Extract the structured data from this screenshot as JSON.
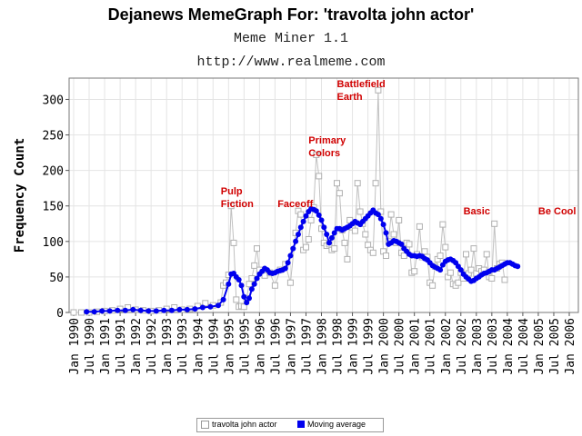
{
  "title": "Dejanews MemeGraph For: 'travolta john actor'",
  "subtitle": "Meme Miner 1.1",
  "url": "http://www.realmeme.com",
  "chart_data": {
    "type": "line",
    "ylabel": "Frequency Count",
    "ylim": [
      0,
      330
    ],
    "yticks": [
      0,
      50,
      100,
      150,
      200,
      250,
      300
    ],
    "x_tick_labels": [
      "Jan 1990",
      "Jul 1990",
      "Jan 1991",
      "Jul 1991",
      "Jan 1992",
      "Jul 1992",
      "Jan 1993",
      "Jul 1993",
      "Jan 1994",
      "Jul 1994",
      "Jan 1995",
      "Jul 1995",
      "Jan 1996",
      "Jul 1996",
      "Jan 1997",
      "Jul 1997",
      "Jan 1998",
      "Jul 1998",
      "Jan 1999",
      "Jul 1999",
      "Jan 2000",
      "Jul 2000",
      "Jan 2001",
      "Jul 2001",
      "Jan 2002",
      "Jul 2002",
      "Jan 2003",
      "Jul 2003",
      "Jan 2004",
      "Jul 2004",
      "Jan 2005",
      "Jul 2005",
      "Jan 2006"
    ],
    "grid": true,
    "legend_position": "bottom-center",
    "colors": {
      "raw": "#c0c0c0",
      "avg": "#0000ee",
      "annotation": "#d00000"
    },
    "annotations": [
      {
        "lines": [
          "Pulp",
          "Fiction"
        ],
        "x": "1994-10"
      },
      {
        "lines": [
          "Faceoff"
        ],
        "x": "1996-08"
      },
      {
        "lines": [
          "Primary",
          "Colors"
        ],
        "x": "1997-08"
      },
      {
        "lines": [
          "Battlefield",
          "Earth"
        ],
        "x": "1998-07"
      },
      {
        "lines": [
          "Basic"
        ],
        "x": "2002-08"
      },
      {
        "lines": [
          "Be Cool"
        ],
        "x": "2005-01"
      }
    ],
    "series": [
      {
        "name": "travolta john actor",
        "points": [
          [
            "1990-01",
            0
          ],
          [
            "1990-04",
            0
          ],
          [
            "1990-07",
            0
          ],
          [
            "1990-10",
            1
          ],
          [
            "1991-01",
            2
          ],
          [
            "1991-04",
            3
          ],
          [
            "1991-07",
            5
          ],
          [
            "1991-10",
            7
          ],
          [
            "1992-01",
            4
          ],
          [
            "1992-04",
            3
          ],
          [
            "1992-07",
            2
          ],
          [
            "1992-10",
            3
          ],
          [
            "1993-01",
            5
          ],
          [
            "1993-04",
            7
          ],
          [
            "1993-07",
            4
          ],
          [
            "1993-10",
            5
          ],
          [
            "1994-01",
            9
          ],
          [
            "1994-04",
            13
          ],
          [
            "1994-07",
            10
          ],
          [
            "1994-10",
            14
          ],
          [
            "1994-11",
            38
          ],
          [
            "1994-12",
            42
          ],
          [
            "1995-01",
            53
          ],
          [
            "1995-02",
            150
          ],
          [
            "1995-03",
            98
          ],
          [
            "1995-04",
            18
          ],
          [
            "1995-05",
            8
          ],
          [
            "1995-06",
            9
          ],
          [
            "1995-07",
            8
          ],
          [
            "1995-08",
            20
          ],
          [
            "1995-09",
            40
          ],
          [
            "1995-10",
            48
          ],
          [
            "1995-11",
            66
          ],
          [
            "1995-12",
            90
          ],
          [
            "1996-01",
            60
          ],
          [
            "1996-03",
            52
          ],
          [
            "1996-05",
            56
          ],
          [
            "1996-07",
            38
          ],
          [
            "1996-09",
            60
          ],
          [
            "1996-11",
            68
          ],
          [
            "1997-01",
            42
          ],
          [
            "1997-03",
            112
          ],
          [
            "1997-04",
            143
          ],
          [
            "1997-05",
            138
          ],
          [
            "1997-06",
            88
          ],
          [
            "1997-07",
            92
          ],
          [
            "1997-08",
            103
          ],
          [
            "1997-09",
            130
          ],
          [
            "1997-10",
            148
          ],
          [
            "1997-11",
            222
          ],
          [
            "1997-12",
            192
          ],
          [
            "1998-01",
            118
          ],
          [
            "1998-02",
            98
          ],
          [
            "1998-03",
            94
          ],
          [
            "1998-04",
            96
          ],
          [
            "1998-05",
            88
          ],
          [
            "1998-06",
            90
          ],
          [
            "1998-07",
            182
          ],
          [
            "1998-08",
            168
          ],
          [
            "1998-09",
            116
          ],
          [
            "1998-10",
            98
          ],
          [
            "1998-11",
            75
          ],
          [
            "1998-12",
            130
          ],
          [
            "1999-01",
            120
          ],
          [
            "1999-02",
            115
          ],
          [
            "1999-03",
            182
          ],
          [
            "1999-04",
            142
          ],
          [
            "1999-05",
            125
          ],
          [
            "1999-06",
            110
          ],
          [
            "1999-07",
            95
          ],
          [
            "1999-08",
            88
          ],
          [
            "1999-09",
            84
          ],
          [
            "1999-10",
            182
          ],
          [
            "1999-11",
            313
          ],
          [
            "1999-12",
            142
          ],
          [
            "2000-01",
            86
          ],
          [
            "2000-02",
            80
          ],
          [
            "2000-03",
            100
          ],
          [
            "2000-04",
            138
          ],
          [
            "2000-05",
            110
          ],
          [
            "2000-06",
            98
          ],
          [
            "2000-07",
            130
          ],
          [
            "2000-08",
            84
          ],
          [
            "2000-09",
            80
          ],
          [
            "2000-10",
            98
          ],
          [
            "2000-11",
            96
          ],
          [
            "2000-12",
            56
          ],
          [
            "2001-01",
            58
          ],
          [
            "2001-02",
            82
          ],
          [
            "2001-03",
            121
          ],
          [
            "2001-04",
            78
          ],
          [
            "2001-05",
            86
          ],
          [
            "2001-06",
            78
          ],
          [
            "2001-07",
            42
          ],
          [
            "2001-08",
            38
          ],
          [
            "2001-09",
            65
          ],
          [
            "2001-10",
            75
          ],
          [
            "2001-11",
            80
          ],
          [
            "2001-12",
            124
          ],
          [
            "2002-01",
            92
          ],
          [
            "2002-02",
            50
          ],
          [
            "2002-03",
            56
          ],
          [
            "2002-04",
            40
          ],
          [
            "2002-05",
            38
          ],
          [
            "2002-06",
            42
          ],
          [
            "2002-07",
            56
          ],
          [
            "2002-08",
            48
          ],
          [
            "2002-09",
            82
          ],
          [
            "2002-10",
            55
          ],
          [
            "2002-11",
            60
          ],
          [
            "2002-12",
            90
          ],
          [
            "2003-01",
            55
          ],
          [
            "2003-02",
            62
          ],
          [
            "2003-03",
            58
          ],
          [
            "2003-04",
            60
          ],
          [
            "2003-05",
            82
          ],
          [
            "2003-06",
            50
          ],
          [
            "2003-07",
            48
          ],
          [
            "2003-08",
            125
          ],
          [
            "2003-09",
            62
          ],
          [
            "2003-10",
            68
          ],
          [
            "2003-11",
            70
          ],
          [
            "2003-12",
            46
          ]
        ]
      },
      {
        "name": "Moving average",
        "points": [
          [
            "1990-06",
            1
          ],
          [
            "1990-09",
            1
          ],
          [
            "1990-12",
            2
          ],
          [
            "1991-03",
            2
          ],
          [
            "1991-06",
            3
          ],
          [
            "1991-09",
            3
          ],
          [
            "1991-12",
            4
          ],
          [
            "1992-03",
            3
          ],
          [
            "1992-06",
            2
          ],
          [
            "1992-09",
            2
          ],
          [
            "1992-12",
            3
          ],
          [
            "1993-03",
            3
          ],
          [
            "1993-06",
            4
          ],
          [
            "1993-09",
            4
          ],
          [
            "1993-12",
            5
          ],
          [
            "1994-03",
            7
          ],
          [
            "1994-06",
            8
          ],
          [
            "1994-09",
            10
          ],
          [
            "1994-11",
            18
          ],
          [
            "1995-01",
            40
          ],
          [
            "1995-02",
            54
          ],
          [
            "1995-03",
            55
          ],
          [
            "1995-04",
            50
          ],
          [
            "1995-05",
            46
          ],
          [
            "1995-06",
            38
          ],
          [
            "1995-07",
            22
          ],
          [
            "1995-08",
            14
          ],
          [
            "1995-09",
            20
          ],
          [
            "1995-10",
            33
          ],
          [
            "1995-11",
            40
          ],
          [
            "1995-12",
            48
          ],
          [
            "1996-01",
            54
          ],
          [
            "1996-02",
            58
          ],
          [
            "1996-03",
            62
          ],
          [
            "1996-04",
            60
          ],
          [
            "1996-05",
            56
          ],
          [
            "1996-06",
            55
          ],
          [
            "1996-07",
            56
          ],
          [
            "1996-08",
            58
          ],
          [
            "1996-09",
            59
          ],
          [
            "1996-10",
            60
          ],
          [
            "1996-11",
            62
          ],
          [
            "1996-12",
            70
          ],
          [
            "1997-01",
            80
          ],
          [
            "1997-02",
            90
          ],
          [
            "1997-03",
            100
          ],
          [
            "1997-04",
            110
          ],
          [
            "1997-05",
            120
          ],
          [
            "1997-06",
            128
          ],
          [
            "1997-07",
            136
          ],
          [
            "1997-08",
            142
          ],
          [
            "1997-09",
            146
          ],
          [
            "1997-10",
            145
          ],
          [
            "1997-11",
            143
          ],
          [
            "1997-12",
            137
          ],
          [
            "1998-01",
            130
          ],
          [
            "1998-02",
            120
          ],
          [
            "1998-03",
            110
          ],
          [
            "1998-04",
            98
          ],
          [
            "1998-05",
            105
          ],
          [
            "1998-06",
            112
          ],
          [
            "1998-07",
            118
          ],
          [
            "1998-08",
            118
          ],
          [
            "1998-09",
            116
          ],
          [
            "1998-10",
            118
          ],
          [
            "1998-11",
            120
          ],
          [
            "1998-12",
            122
          ],
          [
            "1999-01",
            125
          ],
          [
            "1999-02",
            128
          ],
          [
            "1999-03",
            126
          ],
          [
            "1999-04",
            124
          ],
          [
            "1999-05",
            128
          ],
          [
            "1999-06",
            132
          ],
          [
            "1999-07",
            136
          ],
          [
            "1999-08",
            140
          ],
          [
            "1999-09",
            144
          ],
          [
            "1999-10",
            140
          ],
          [
            "1999-11",
            138
          ],
          [
            "1999-12",
            132
          ],
          [
            "2000-01",
            124
          ],
          [
            "2000-02",
            112
          ],
          [
            "2000-03",
            96
          ],
          [
            "2000-04",
            98
          ],
          [
            "2000-05",
            101
          ],
          [
            "2000-06",
            100
          ],
          [
            "2000-07",
            98
          ],
          [
            "2000-08",
            96
          ],
          [
            "2000-09",
            90
          ],
          [
            "2000-10",
            86
          ],
          [
            "2000-11",
            82
          ],
          [
            "2000-12",
            80
          ],
          [
            "2001-01",
            80
          ],
          [
            "2001-02",
            79
          ],
          [
            "2001-03",
            80
          ],
          [
            "2001-04",
            79
          ],
          [
            "2001-05",
            76
          ],
          [
            "2001-06",
            74
          ],
          [
            "2001-07",
            70
          ],
          [
            "2001-08",
            66
          ],
          [
            "2001-09",
            64
          ],
          [
            "2001-10",
            62
          ],
          [
            "2001-11",
            60
          ],
          [
            "2001-12",
            67
          ],
          [
            "2002-01",
            72
          ],
          [
            "2002-02",
            74
          ],
          [
            "2002-03",
            75
          ],
          [
            "2002-04",
            73
          ],
          [
            "2002-05",
            70
          ],
          [
            "2002-06",
            65
          ],
          [
            "2002-07",
            60
          ],
          [
            "2002-08",
            54
          ],
          [
            "2002-09",
            50
          ],
          [
            "2002-10",
            47
          ],
          [
            "2002-11",
            44
          ],
          [
            "2002-12",
            45
          ],
          [
            "2003-01",
            48
          ],
          [
            "2003-02",
            50
          ],
          [
            "2003-03",
            53
          ],
          [
            "2003-04",
            55
          ],
          [
            "2003-05",
            56
          ],
          [
            "2003-06",
            58
          ],
          [
            "2003-07",
            60
          ],
          [
            "2003-08",
            60
          ],
          [
            "2003-09",
            62
          ],
          [
            "2003-10",
            64
          ],
          [
            "2003-11",
            66
          ],
          [
            "2003-12",
            68
          ],
          [
            "2004-01",
            70
          ],
          [
            "2004-02",
            70
          ],
          [
            "2004-03",
            68
          ],
          [
            "2004-04",
            66
          ],
          [
            "2004-05",
            65
          ]
        ]
      }
    ]
  }
}
